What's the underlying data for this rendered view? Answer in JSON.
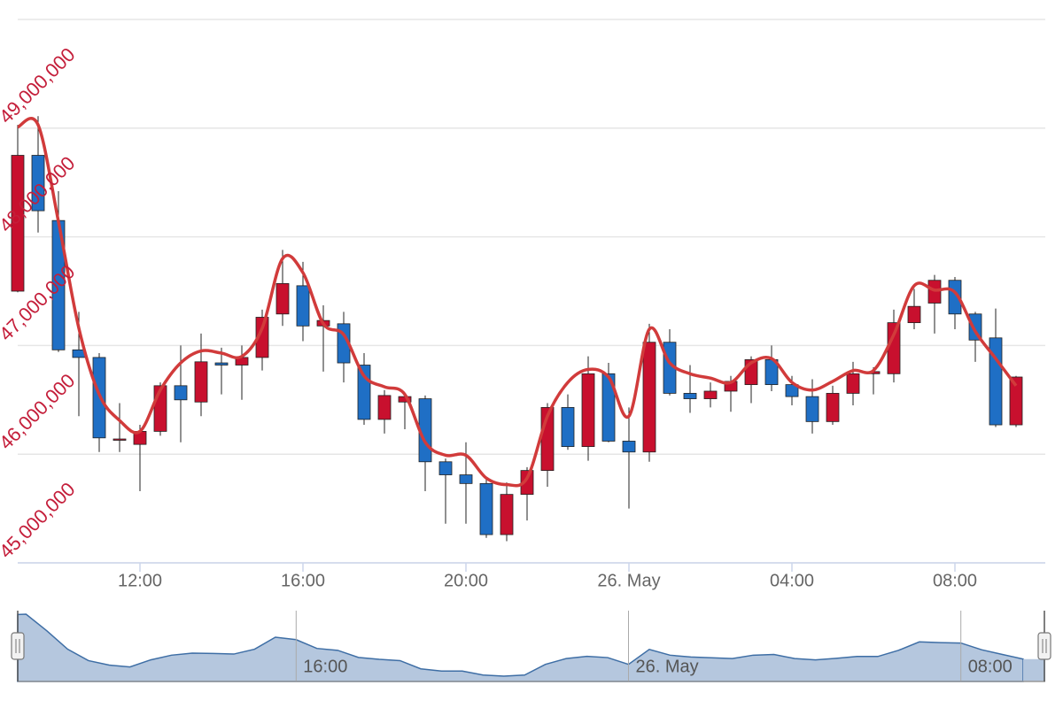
{
  "chart_data": {
    "type": "candlestick",
    "categories": [
      null,
      null,
      null,
      null,
      null,
      null,
      "12:00",
      null,
      null,
      null,
      null,
      null,
      null,
      null,
      "16:00",
      null,
      null,
      null,
      null,
      null,
      null,
      null,
      "20:00",
      null,
      null,
      null,
      null,
      null,
      null,
      null,
      "26. May",
      null,
      null,
      null,
      null,
      null,
      null,
      null,
      "04:00",
      null,
      null,
      null,
      null,
      null,
      null,
      null,
      "08:00",
      null,
      null,
      null
    ],
    "ylim": [
      45000000,
      50000000
    ],
    "yticks": [
      {
        "value": 45000000,
        "label": "45,000,000"
      },
      {
        "value": 46000000,
        "label": "46,000,000"
      },
      {
        "value": 47000000,
        "label": "47,000,000"
      },
      {
        "value": 48000000,
        "label": "48,000,000"
      },
      {
        "value": 49000000,
        "label": "49,000,000"
      }
    ],
    "grid": true,
    "series": [
      {
        "type": "candlestick",
        "up_color": "#c8102e",
        "down_color": "#1f6fc5",
        "open": [
          47500000,
          48750000,
          48150000,
          46960000,
          46890000,
          46130000,
          46090000,
          46210000,
          46630000,
          46480000,
          46840000,
          46820000,
          46890000,
          47290000,
          47550000,
          47180000,
          47200000,
          46820000,
          46320000,
          46480000,
          46510000,
          45930000,
          45810000,
          45730000,
          45260000,
          45630000,
          45850000,
          46430000,
          46070000,
          46740000,
          46120000,
          46020000,
          47030000,
          46560000,
          46510000,
          46580000,
          46640000,
          46870000,
          46640000,
          46530000,
          46300000,
          46560000,
          46740000,
          46740000,
          47210000,
          47390000,
          47600000,
          47290000,
          47070000,
          46270000
        ],
        "high": [
          49030000,
          49110000,
          48420000,
          47310000,
          46930000,
          46470000,
          46270000,
          46660000,
          47000000,
          47110000,
          46980000,
          47000000,
          47330000,
          47880000,
          47770000,
          47370000,
          47310000,
          46930000,
          46590000,
          46550000,
          46540000,
          45960000,
          46110000,
          45780000,
          45740000,
          45880000,
          46470000,
          46550000,
          46900000,
          46840000,
          46430000,
          47200000,
          47150000,
          46820000,
          46660000,
          46720000,
          46900000,
          47000000,
          46720000,
          46690000,
          46630000,
          46850000,
          46800000,
          47330000,
          47520000,
          47650000,
          47630000,
          47310000,
          47340000,
          46720000
        ],
        "low": [
          47490000,
          48040000,
          46940000,
          46350000,
          46020000,
          46020000,
          45660000,
          46170000,
          46110000,
          46350000,
          46550000,
          46500000,
          46770000,
          47180000,
          47040000,
          46760000,
          46660000,
          46270000,
          46190000,
          46230000,
          45660000,
          45360000,
          45360000,
          45230000,
          45200000,
          45390000,
          45700000,
          46040000,
          45940000,
          46110000,
          45500000,
          45930000,
          46540000,
          46380000,
          46430000,
          46390000,
          46470000,
          46580000,
          46450000,
          46190000,
          46270000,
          46450000,
          46550000,
          46660000,
          47150000,
          47110000,
          47150000,
          46850000,
          46250000,
          46250000
        ],
        "close": [
          48750000,
          48240000,
          46960000,
          46890000,
          46150000,
          46140000,
          46210000,
          46630000,
          46500000,
          46850000,
          46820000,
          46890000,
          47260000,
          47570000,
          47180000,
          47230000,
          46840000,
          46320000,
          46540000,
          46530000,
          45930000,
          45810000,
          45730000,
          45260000,
          45630000,
          45850000,
          46430000,
          46070000,
          46740000,
          46120000,
          46020000,
          47030000,
          46560000,
          46510000,
          46580000,
          46670000,
          46870000,
          46640000,
          46530000,
          46300000,
          46560000,
          46740000,
          46760000,
          47210000,
          47360000,
          47600000,
          47290000,
          47050000,
          46270000,
          46710000
        ]
      },
      {
        "type": "line",
        "color": "#d13b3b",
        "values": [
          49010000,
          49030000,
          48140000,
          47160000,
          46550000,
          46310000,
          46210000,
          46590000,
          46840000,
          46950000,
          46930000,
          46900000,
          47160000,
          47800000,
          47670000,
          47200000,
          47100000,
          46720000,
          46620000,
          46550000,
          46110000,
          45990000,
          45990000,
          45780000,
          45720000,
          45780000,
          46350000,
          46660000,
          46780000,
          46710000,
          46350000,
          47150000,
          46840000,
          46740000,
          46700000,
          46660000,
          46840000,
          46880000,
          46660000,
          46590000,
          46670000,
          46770000,
          46770000,
          47100000,
          47550000,
          47510000,
          47490000,
          47130000,
          46880000,
          46630000
        ]
      }
    ],
    "navigator": {
      "labels": [
        {
          "value": 14,
          "label": "16:00"
        },
        {
          "value": 30,
          "label": "26. May"
        },
        {
          "value": 46,
          "label": "08:00"
        }
      ]
    }
  }
}
